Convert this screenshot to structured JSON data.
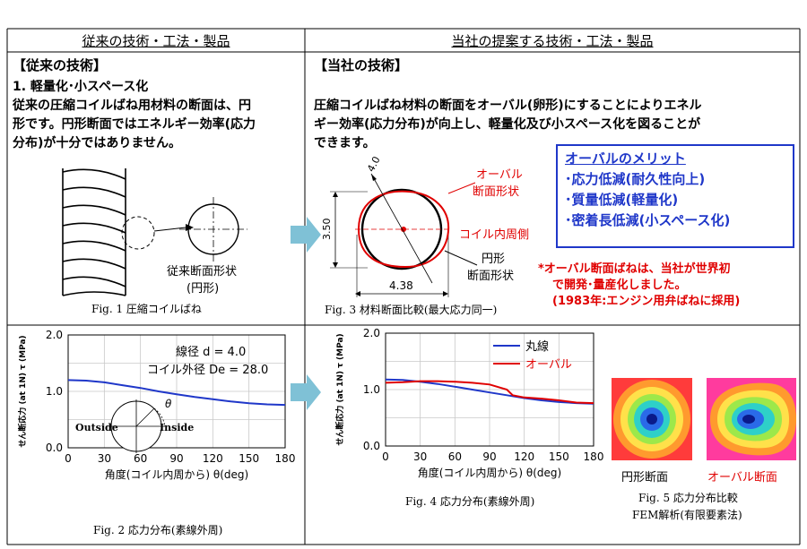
{
  "left": {
    "column_title": "従来の技術・工法・製品",
    "section_title": "【従来の技術】",
    "heading": "1. 軽量化･小スペース化",
    "text_lines": [
      "従来の圧縮コイルばね用材料の断面は、円",
      "形です。円形断面ではエネルギー効率(応力",
      "分布)が十分ではありません。"
    ],
    "fig1": {
      "section_label": "従来断面形状",
      "section_sub": "(円形)",
      "caption": "Fig. 1 圧縮コイルばね"
    },
    "fig2": {
      "caption": "Fig. 2 応力分布(素線外周)",
      "annotation_d": "線径 d = 4.0",
      "annotation_D": "コイル外径 De = 28.0",
      "outside": "Outside",
      "inside": "Inside",
      "theta": "θ"
    }
  },
  "right": {
    "column_title": "当社の提案する技術・工法・製品",
    "section_title": "【当社の技術】",
    "text_lines": [
      "圧縮コイルばね材料の断面をオーバル(卵形)にすることによりエネル",
      "ギー効率(応力分布)が向上し、軽量化及び小スペース化を図ることが",
      "できます。"
    ],
    "fig3": {
      "oval_label_1": "オーバル",
      "oval_label_2": "断面形状",
      "inner_side": "コイル内周側",
      "round_label_1": "円形",
      "round_label_2": "断面形状",
      "dim_diag": "4.0",
      "dim_height": "3.50",
      "dim_width": "4.38",
      "caption": "Fig. 3 材料断面比較(最大応力同一)"
    },
    "merit": {
      "title": "オーバルのメリット",
      "items": [
        "･応力低減(耐久性向上)",
        "･質量低減(軽量化)",
        "･密着長低減(小スペース化)"
      ]
    },
    "note_lines": [
      "*オーバル断面ばねは、当社が世界初",
      "で開発･量産化しました。",
      "(1983年:エンジン用弁ばねに採用)"
    ],
    "fig4": {
      "caption": "Fig. 4 応力分布(素線外周)"
    },
    "fig5": {
      "label_round": "円形断面",
      "label_oval": "オーバル断面",
      "caption_1": "Fig. 5 応力分布比較",
      "caption_2": "FEM解析(有限要素法)"
    }
  },
  "chart_data": [
    {
      "type": "line",
      "title": "",
      "xlabel": "角度(コイル内周から) θ(deg)",
      "ylabel": "せん断応力 (at 1N) τ (MPa)",
      "xlim": [
        0,
        180
      ],
      "ylim": [
        0,
        2.0
      ],
      "xticks": [
        0,
        30,
        60,
        90,
        120,
        150,
        180
      ],
      "yticks": [
        "0.0",
        "1.0",
        "2.0"
      ],
      "grid": true,
      "series": [
        {
          "color": "#1f37c9",
          "x": [
            0,
            15,
            30,
            45,
            60,
            75,
            90,
            105,
            120,
            135,
            150,
            165,
            180
          ],
          "y": [
            1.2,
            1.19,
            1.16,
            1.11,
            1.06,
            1.0,
            0.95,
            0.9,
            0.86,
            0.82,
            0.79,
            0.77,
            0.76
          ]
        }
      ]
    },
    {
      "type": "line",
      "title": "",
      "xlabel": "角度(コイル内周から) θ(deg)",
      "ylabel": "せん断応力 (at 1N) τ (MPa)",
      "xlim": [
        0,
        180
      ],
      "ylim": [
        0,
        2.0
      ],
      "xticks": [
        0,
        30,
        60,
        90,
        120,
        150,
        180
      ],
      "yticks": [
        "0.0",
        "1.0",
        "2.0"
      ],
      "grid": true,
      "legend": "top-right",
      "series": [
        {
          "name": "丸線",
          "color": "#1f37c9",
          "x": [
            0,
            15,
            30,
            45,
            60,
            75,
            90,
            105,
            120,
            135,
            150,
            165,
            180
          ],
          "y": [
            1.18,
            1.17,
            1.14,
            1.1,
            1.05,
            1.0,
            0.95,
            0.9,
            0.85,
            0.81,
            0.78,
            0.76,
            0.75
          ]
        },
        {
          "name": "オーバル",
          "color": "#e00000",
          "x": [
            0,
            15,
            30,
            45,
            60,
            75,
            90,
            105,
            110,
            120,
            135,
            150,
            165,
            180
          ],
          "y": [
            1.12,
            1.13,
            1.15,
            1.15,
            1.14,
            1.12,
            1.09,
            1.0,
            0.9,
            0.86,
            0.84,
            0.81,
            0.77,
            0.76
          ]
        }
      ]
    }
  ]
}
